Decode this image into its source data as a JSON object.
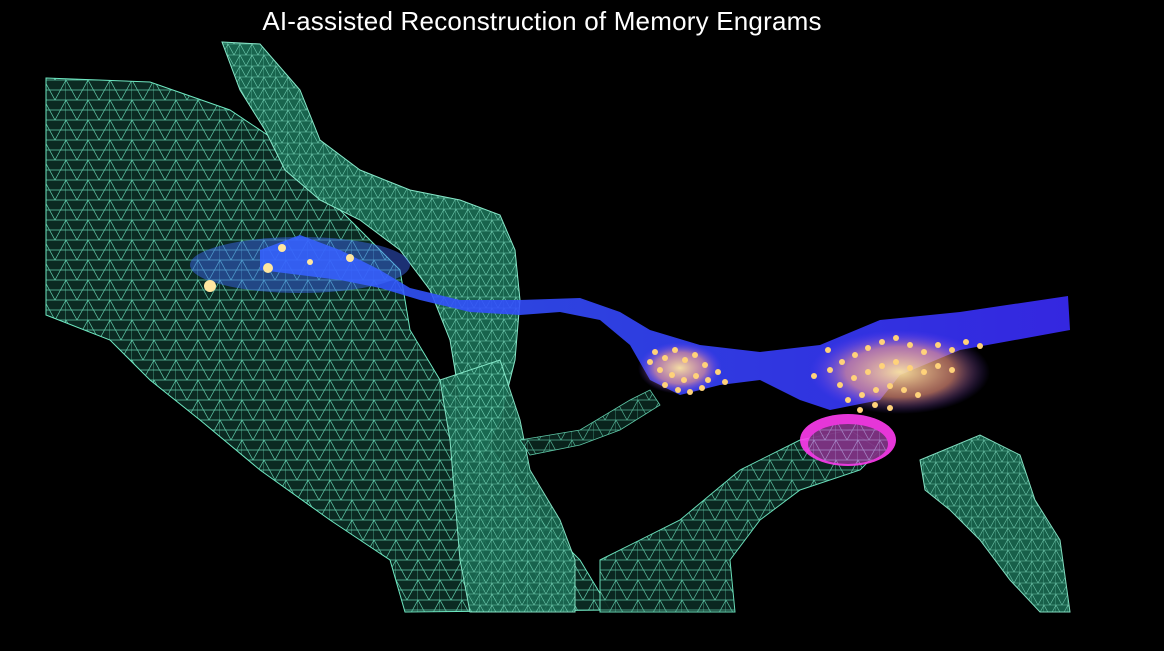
{
  "title": "AI-assisted Reconstruction of Memory Engrams",
  "colors": {
    "background": "#000000",
    "mesh": "#5fe0b4",
    "mesh_fill": "#1f7a5f",
    "axon": "#3a2cff",
    "engram_dots": "#ffd27a",
    "synapse": "#ff3cf0"
  }
}
